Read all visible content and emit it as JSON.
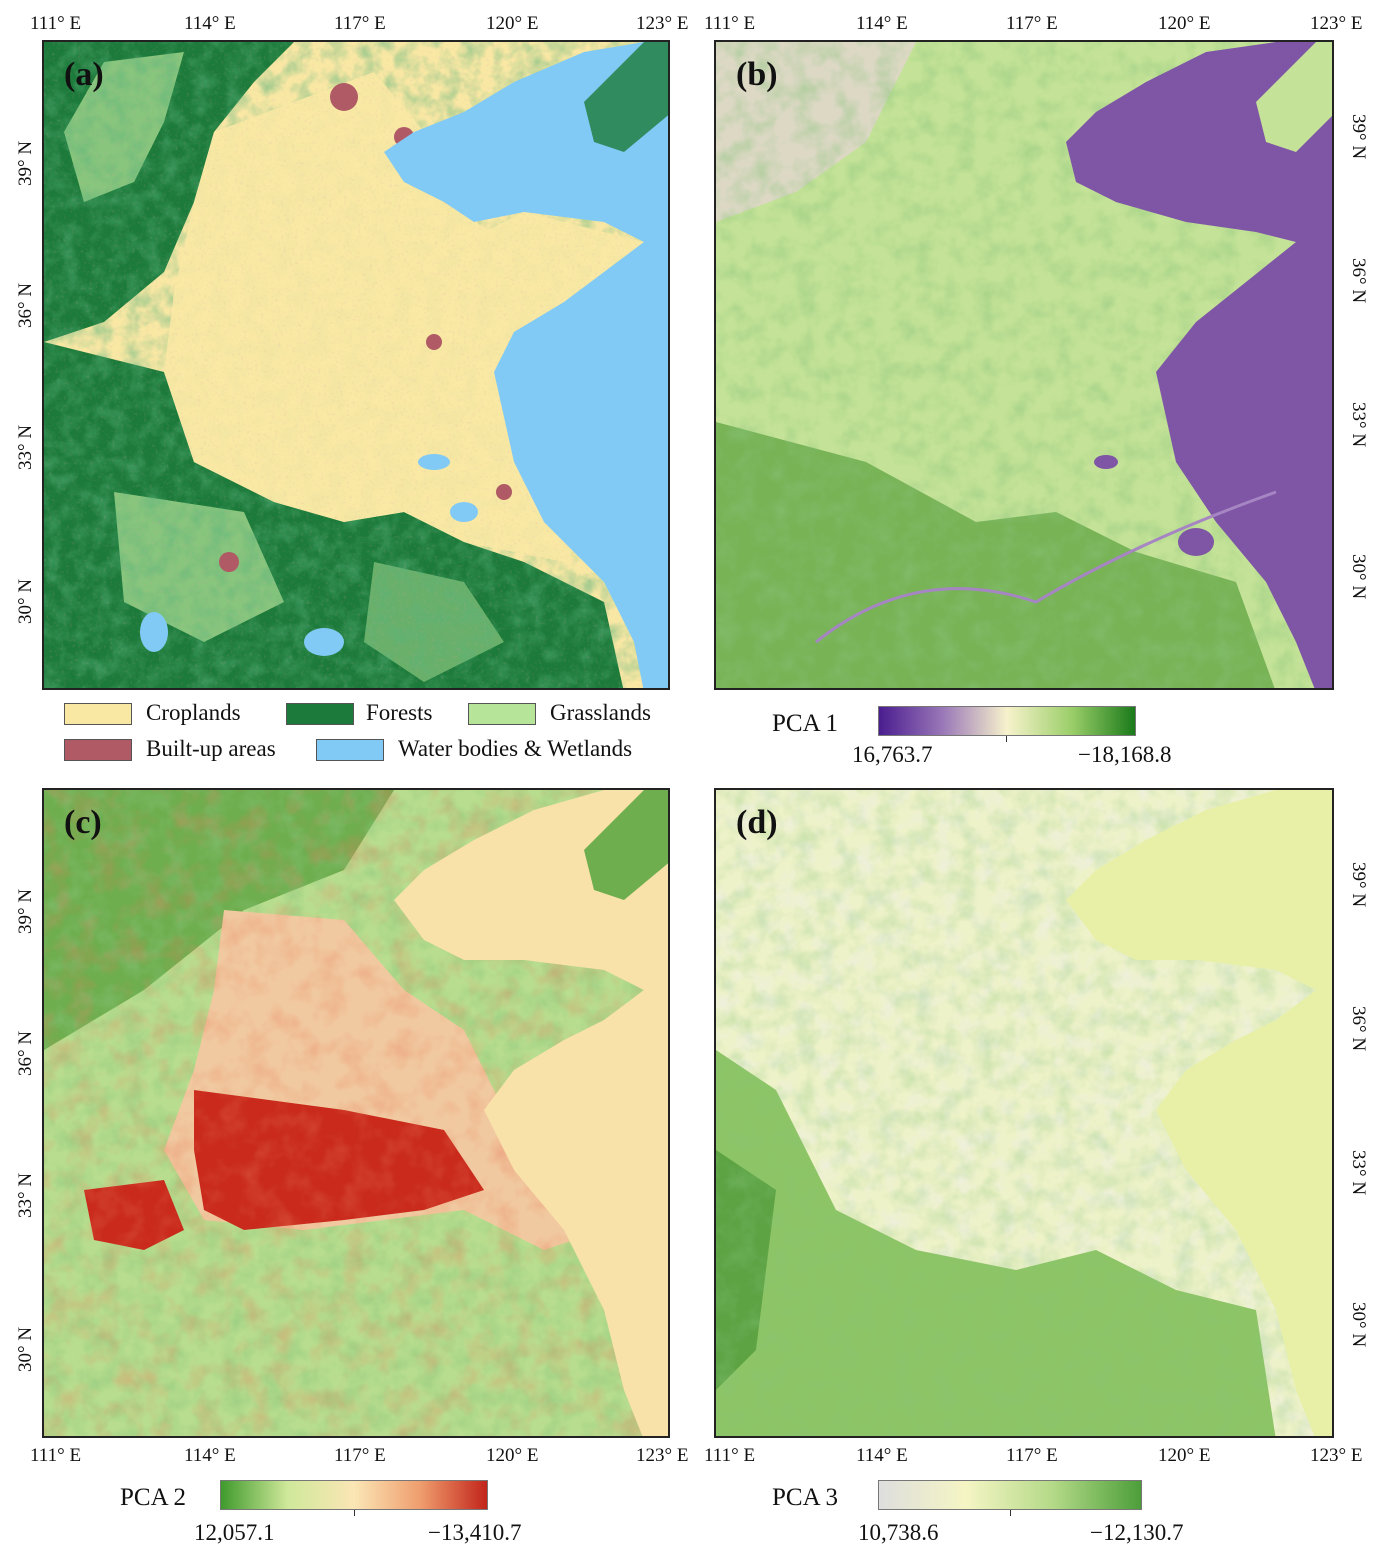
{
  "lon_ticks": [
    "111° E",
    "114° E",
    "117° E",
    "120° E",
    "123° E"
  ],
  "lat_ticks": [
    "39° N",
    "36° N",
    "33° N",
    "30° N"
  ],
  "panels": {
    "a": {
      "label": "(a)"
    },
    "b": {
      "label": "(b)"
    },
    "c": {
      "label": "(c)"
    },
    "d": {
      "label": "(d)"
    }
  },
  "land_cover_legend": [
    {
      "name": "Croplands",
      "color": "#f9e8a4"
    },
    {
      "name": "Forests",
      "color": "#1c7a3a"
    },
    {
      "name": "Grasslands",
      "color": "#b6e59a"
    },
    {
      "name": "Built-up areas",
      "color": "#b05a66"
    },
    {
      "name": "Water bodies & Wetlands",
      "color": "#82caf6"
    }
  ],
  "colorbars": {
    "pca1": {
      "title": "PCA 1",
      "min_label": "16,763.7",
      "max_label": "−18,168.8",
      "colors": [
        "#4a1d8f",
        "#9a78b8",
        "#f7f2cc",
        "#9ccf6a",
        "#1a7a1a"
      ]
    },
    "pca2": {
      "title": "PCA 2",
      "min_label": "12,057.1",
      "max_label": "−13,410.7",
      "colors": [
        "#3f9a2c",
        "#cfe89a",
        "#fbe6b5",
        "#ef9d6e",
        "#c2241a"
      ]
    },
    "pca3": {
      "title": "PCA 3",
      "min_label": "10,738.6",
      "max_label": "−12,130.7",
      "colors": [
        "#dedede",
        "#f5f5c4",
        "#b3d987",
        "#4c9e3a"
      ]
    }
  }
}
